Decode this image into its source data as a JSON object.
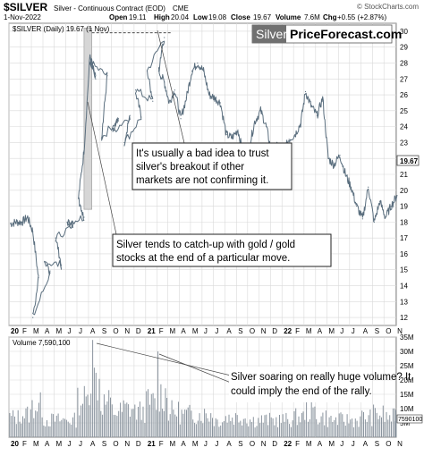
{
  "header": {
    "symbol": "$SILVER",
    "description": "Silver - Continuous Contract (EOD)",
    "exchange": "CME",
    "date": "1-Nov-2022",
    "source": "© StockCharts.com",
    "open_label": "Open",
    "open_value": "19.11",
    "high_label": "High",
    "high_value": "20.04",
    "low_label": "Low",
    "low_value": "19.08",
    "close_label": "Close",
    "close_value": "19.67",
    "volume_label": "Volume",
    "volume_value": "7.6M",
    "chg_label": "Chg",
    "chg_value": "+0.55 (+2.87%)"
  },
  "branding": {
    "word1": "Silver",
    "word2": "PriceForecast.com"
  },
  "price_panel": {
    "legend": "$SILVER (Daily) 19.67 (1 Nov)",
    "last_price_label": "19.67",
    "annotations": [
      [
        "It's usually a bad idea to trust",
        "silver's breakout if other",
        "markets are not confirming it."
      ],
      [
        "Silver tends to catch-up with gold / gold",
        "stocks at the end of a particular move."
      ]
    ]
  },
  "volume_panel": {
    "legend": "Volume 7,590,100",
    "last_volume_label": "7590100",
    "annotation": [
      "Silver soaring on really huge volume? It",
      "could imply the end of the rally."
    ]
  },
  "colors": {
    "price_line": "#5a6e7e",
    "volume_bar": "#8a949e",
    "highlight": "#d6d6d6",
    "grid": "#d9d9d9"
  },
  "chart_data": [
    {
      "type": "line",
      "title": "$SILVER (Daily) 19.67 (1 Nov)",
      "x_tick_labels": [
        "20",
        "F",
        "M",
        "A",
        "M",
        "J",
        "J",
        "A",
        "S",
        "O",
        "N",
        "D",
        "21",
        "F",
        "M",
        "A",
        "M",
        "J",
        "J",
        "A",
        "S",
        "O",
        "N",
        "D",
        "22",
        "F",
        "M",
        "A",
        "M",
        "J",
        "J",
        "A",
        "S",
        "O",
        "N"
      ],
      "y_tick_labels": [
        12,
        13,
        14,
        15,
        16,
        17,
        18,
        19,
        20,
        21,
        22,
        23,
        24,
        25,
        26,
        27,
        28,
        29,
        30
      ],
      "ylim": [
        11.5,
        30.5
      ],
      "grid": true,
      "x": [
        "2020-01",
        "2020-01",
        "2020-02",
        "2020-02",
        "2020-03",
        "2020-03",
        "2020-03",
        "2020-04",
        "2020-04",
        "2020-05",
        "2020-05",
        "2020-06",
        "2020-06",
        "2020-07",
        "2020-07",
        "2020-07",
        "2020-08",
        "2020-08",
        "2020-08",
        "2020-09",
        "2020-09",
        "2020-10",
        "2020-10",
        "2020-11",
        "2020-11",
        "2020-12",
        "2020-12",
        "2021-01",
        "2021-01",
        "2021-02",
        "2021-02",
        "2021-02",
        "2021-03",
        "2021-03",
        "2021-04",
        "2021-04",
        "2021-05",
        "2021-05",
        "2021-06",
        "2021-06",
        "2021-07",
        "2021-07",
        "2021-08",
        "2021-08",
        "2021-09",
        "2021-09",
        "2021-10",
        "2021-10",
        "2021-11",
        "2021-11",
        "2021-12",
        "2021-12",
        "2022-01",
        "2022-01",
        "2022-02",
        "2022-02",
        "2022-03",
        "2022-03",
        "2022-04",
        "2022-04",
        "2022-05",
        "2022-05",
        "2022-06",
        "2022-06",
        "2022-07",
        "2022-07",
        "2022-08",
        "2022-08",
        "2022-09",
        "2022-09",
        "2022-10",
        "2022-10",
        "2022-11"
      ],
      "values": [
        17.9,
        18.0,
        18.0,
        18.3,
        17.4,
        14.5,
        12.0,
        14.8,
        15.5,
        15.3,
        17.0,
        17.8,
        18.0,
        18.3,
        19.5,
        22.5,
        28.5,
        27.0,
        28.0,
        27.2,
        23.3,
        24.5,
        23.7,
        24.7,
        23.0,
        24.6,
        26.3,
        25.6,
        27.5,
        29.6,
        27.5,
        26.8,
        25.5,
        26.3,
        24.5,
        25.8,
        27.5,
        28.0,
        27.5,
        26.0,
        25.8,
        25.5,
        23.5,
        23.3,
        23.8,
        22.2,
        22.7,
        24.3,
        25.0,
        24.0,
        22.3,
        22.8,
        22.4,
        23.2,
        23.5,
        24.2,
        26.2,
        25.3,
        24.7,
        25.8,
        22.0,
        21.6,
        22.2,
        21.0,
        20.2,
        19.0,
        18.2,
        20.2,
        18.0,
        19.3,
        18.3,
        19.0,
        19.67
      ],
      "annotations": [
        "It's usually a bad idea to trust silver's breakout if other markets are not confirming it.",
        "Silver tends to catch-up with gold / gold stocks at the end of a particular move."
      ]
    },
    {
      "type": "bar",
      "title": "Volume 7,590,100",
      "x_tick_labels": [
        "20",
        "F",
        "M",
        "A",
        "M",
        "J",
        "J",
        "A",
        "S",
        "O",
        "N",
        "D",
        "21",
        "F",
        "M",
        "A",
        "M",
        "J",
        "J",
        "A",
        "S",
        "O",
        "N",
        "D",
        "22",
        "F",
        "M",
        "A",
        "M",
        "J",
        "J",
        "A",
        "S",
        "O",
        "N"
      ],
      "y_tick_labels": [
        "5M",
        "10M",
        "15M",
        "20M",
        "25M",
        "30M",
        "35M"
      ],
      "ylim": [
        0,
        35
      ],
      "grid": true,
      "x": [
        "2020-01",
        "2020-02",
        "2020-03",
        "2020-04",
        "2020-05",
        "2020-06",
        "2020-07",
        "2020-08",
        "2020-09",
        "2020-10",
        "2020-11",
        "2020-12",
        "2021-01",
        "2021-02",
        "2021-03",
        "2021-04",
        "2021-05",
        "2021-06",
        "2021-07",
        "2021-08",
        "2021-09",
        "2021-10",
        "2021-11",
        "2021-12",
        "2022-01",
        "2022-02",
        "2022-03",
        "2022-04",
        "2022-05",
        "2022-06",
        "2022-07",
        "2022-08",
        "2022-09",
        "2022-10",
        "2022-11"
      ],
      "values": [
        7,
        8,
        11,
        6,
        6,
        6,
        13,
        20,
        12,
        9,
        10,
        9,
        12,
        15,
        9,
        8,
        8,
        8,
        6,
        7,
        7,
        6,
        6,
        6,
        6,
        7,
        9,
        7,
        6,
        6,
        6,
        7,
        8,
        7,
        7.6
      ],
      "annotations": [
        "Silver soaring on really huge volume? It could imply the end of the rally."
      ]
    }
  ]
}
